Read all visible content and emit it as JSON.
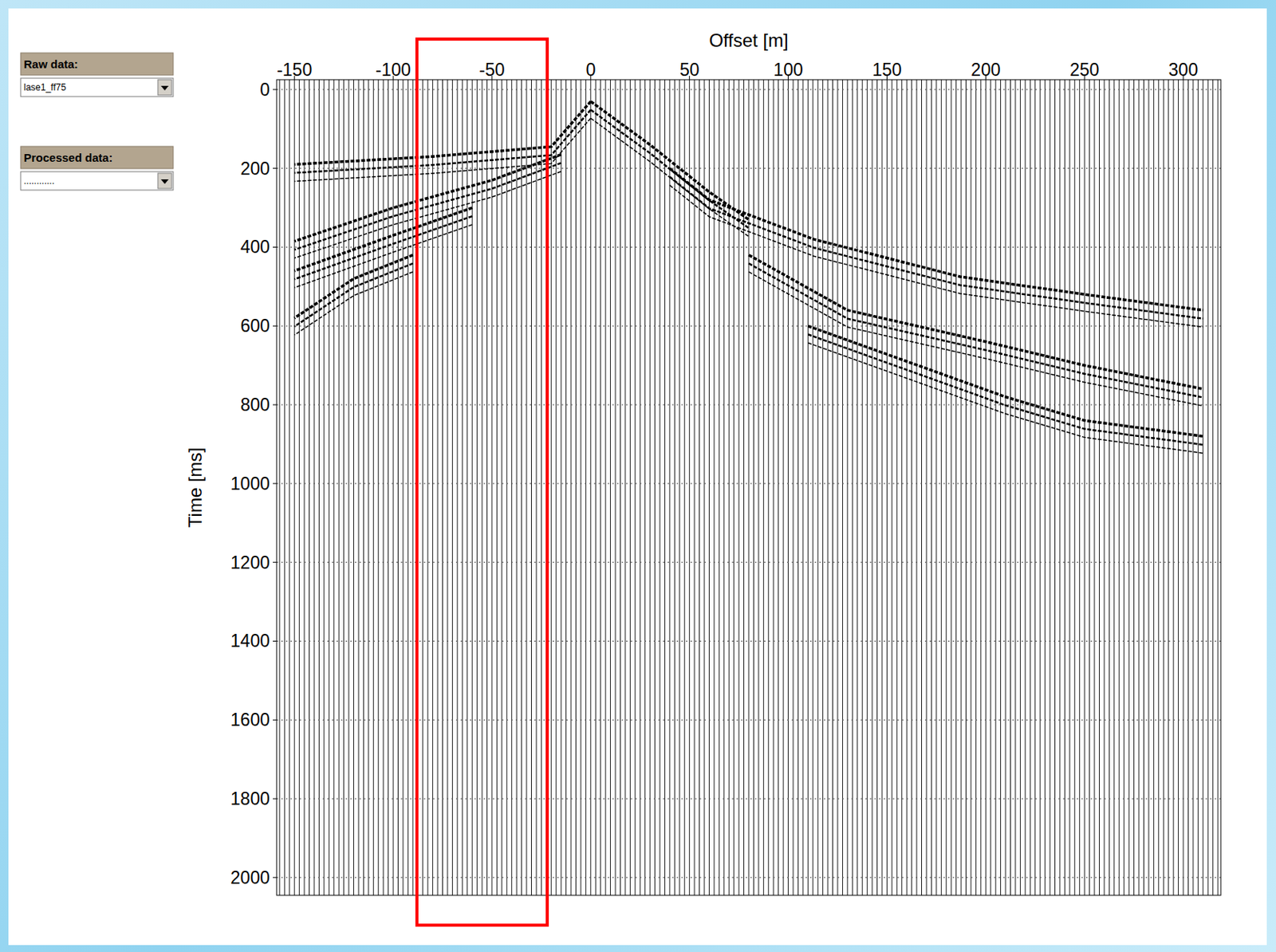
{
  "panel": {
    "raw_label": "Raw data:",
    "raw_value": "lase1_ff75",
    "processed_label": "Processed data:",
    "processed_value": "............"
  },
  "chart_data": {
    "type": "wiggle",
    "x_label": "Offset [m]",
    "y_label": "Time [ms]",
    "xlim": [
      -159,
      319
    ],
    "ylim": [
      -25,
      2045
    ],
    "xticks": [
      -150,
      -100,
      -50,
      0,
      50,
      100,
      150,
      200,
      250,
      300
    ],
    "yticks": [
      0,
      200,
      400,
      600,
      800,
      1000,
      1200,
      1400,
      1600,
      1800,
      2000
    ],
    "grid": "y",
    "color": "#000000",
    "traces": [
      -157.5,
      -155,
      -152.5,
      -150,
      -147.5,
      -145,
      -142.5,
      -140,
      -137.5,
      -135,
      -132.5,
      -130,
      -127.5,
      -125,
      -122.5,
      -120,
      -117.5,
      -115,
      -112.5,
      -110,
      -107.5,
      -105,
      -102.5,
      -100,
      -97.5,
      -95,
      -92.5,
      -90,
      -87.5,
      -85,
      -82.5,
      -80,
      -77.5,
      -75,
      -72.5,
      -70,
      -67.5,
      -65,
      -62.5,
      -60,
      -57.5,
      -55,
      -52.5,
      -50,
      -47.5,
      -45,
      -42.5,
      -40,
      -37.5,
      -35,
      -32.5,
      -30,
      -27.5,
      -25,
      -22.5,
      -20,
      -17.5,
      -15,
      -12.5,
      -10,
      -7.5,
      -5,
      -2.5,
      0,
      2.5,
      5,
      7.5,
      10,
      12.5,
      15,
      17.5,
      20,
      22.5,
      25,
      27.5,
      30,
      32.5,
      35,
      37.5,
      40,
      42.5,
      45,
      47.5,
      50,
      52.5,
      55,
      57.5,
      60,
      62.5,
      65,
      67.5,
      70,
      72.5,
      75,
      77.5,
      80,
      82.5,
      85,
      87.5,
      90,
      92.5,
      95,
      97.5,
      100,
      102.5,
      105,
      107.5,
      110,
      112.5,
      115,
      117.5,
      120,
      122.5,
      125,
      127.5,
      130,
      132.5,
      135,
      137.5,
      140,
      142.5,
      145,
      147.5,
      150,
      152.5,
      155,
      157.5,
      160,
      162.5,
      165,
      167.5,
      170,
      172.5,
      175,
      177.5,
      180,
      182.5,
      185,
      187.5,
      190,
      192.5,
      195,
      197.5,
      200,
      202.5,
      205,
      207.5,
      210,
      212.5,
      215,
      217.5,
      220,
      222.5,
      225,
      227.5,
      230,
      232.5,
      235,
      237.5,
      240,
      242.5,
      245,
      247.5,
      250,
      252.5,
      255,
      257.5,
      260,
      262.5,
      265,
      267.5,
      270,
      272.5,
      275,
      277.5,
      280,
      282.5,
      285,
      287.5,
      290,
      292.5,
      295,
      297.5,
      300,
      302.5,
      305,
      307.5,
      310,
      312.5,
      315,
      317.5
    ],
    "events": [
      {
        "x": [
          0,
          -20,
          -80,
          -150
        ],
        "values": [
          30,
          145,
          170,
          190
        ]
      },
      {
        "x": [
          -15,
          -50,
          -100,
          -150
        ],
        "values": [
          165,
          230,
          300,
          385
        ]
      },
      {
        "x": [
          -60,
          -100,
          -150
        ],
        "values": [
          300,
          370,
          460
        ]
      },
      {
        "x": [
          -90,
          -120,
          -150
        ],
        "values": [
          420,
          480,
          580
        ]
      },
      {
        "x": [
          0,
          30,
          60,
          80
        ],
        "values": [
          30,
          140,
          260,
          330
        ]
      },
      {
        "x": [
          40,
          60,
          113,
          187,
          250,
          310
        ],
        "values": [
          200,
          280,
          380,
          475,
          520,
          560
        ]
      },
      {
        "x": [
          80,
          130,
          200,
          250,
          310
        ],
        "values": [
          420,
          560,
          640,
          700,
          760
        ]
      },
      {
        "x": [
          110,
          160,
          210,
          250,
          310
        ],
        "values": [
          600,
          690,
          780,
          840,
          880
        ]
      }
    ],
    "highlight": {
      "xlim": [
        -88,
        -22
      ],
      "color": "#ff0000"
    }
  }
}
